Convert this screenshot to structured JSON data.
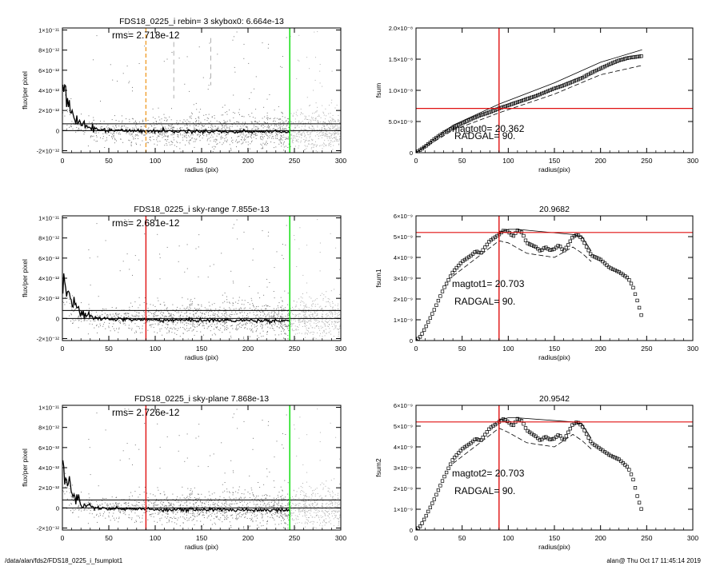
{
  "colors": {
    "background": "#ffffff",
    "axis": "#000000",
    "scatter": "#a8a8a8",
    "profile": "#000000",
    "green": "#00dd00",
    "red": "#e01010",
    "orange": "#f0a030",
    "grid_dash": "#999999"
  },
  "footer": {
    "left": "/data/alan/fds2/FDS18_0225_i_fsumplot1",
    "right": "alan@  Thu Oct 17 11:45:14 2019"
  },
  "chart_data": [
    {
      "type": "scatter",
      "title": "FDS18_0225_i rebin= 3    skybox0:  6.664e-13",
      "annotation": "rms= 2.718e-12",
      "xlabel": "radius (pix)",
      "ylabel": "flux/per pixel",
      "xlim": [
        0,
        300
      ],
      "ylim": [
        -2.2e-12,
        1.02e-11
      ],
      "xticks": [
        0,
        50,
        100,
        150,
        200,
        250,
        300
      ],
      "xtick_labels": [
        "0",
        "50",
        "100",
        "150",
        "200",
        "250",
        "300"
      ],
      "yticks": [
        -2e-12,
        0,
        2e-12,
        4e-12,
        6e-12,
        8e-12,
        1e-11
      ],
      "ytick_labels": [
        "-2×10⁻¹²",
        "0",
        "2×10⁻¹²",
        "4×10⁻¹²",
        "6×10⁻¹²",
        "8×10⁻¹²",
        "1×10⁻¹¹"
      ],
      "hlines": [
        6.7e-13,
        0
      ],
      "vlines": [
        {
          "x": 245,
          "color": "green",
          "style": "solid"
        },
        {
          "x": 90,
          "color": "orange",
          "style": "dashed"
        },
        {
          "x": 120,
          "color": "gray",
          "style": "dashed",
          "span": [
            3.2e-12,
            8.8e-12
          ]
        },
        {
          "x": 160,
          "color": "gray",
          "style": "dashed",
          "span": [
            4.5e-12,
            9.2e-12
          ]
        }
      ],
      "profile": [
        [
          1,
          4.5e-12
        ],
        [
          3,
          3.4e-12
        ],
        [
          5,
          2.8e-12
        ],
        [
          7,
          2.6e-12
        ],
        [
          9,
          1.9e-12
        ],
        [
          11,
          1.8e-12
        ],
        [
          13,
          1.2e-12
        ],
        [
          16,
          1.1e-12
        ],
        [
          20,
          6e-13
        ],
        [
          25,
          4e-13
        ],
        [
          30,
          2e-13
        ],
        [
          40,
          1e-13
        ],
        [
          50,
          5e-14
        ],
        [
          70,
          -2e-14
        ],
        [
          100,
          -5e-14
        ],
        [
          150,
          -8e-14
        ],
        [
          200,
          -1e-13
        ],
        [
          245,
          -1.2e-13
        ]
      ]
    },
    {
      "type": "line",
      "title": "",
      "annotations": [
        "magtot0=  20.362",
        "RADGAL=     90."
      ],
      "xlabel": "radius(pix)",
      "ylabel": "fsum",
      "xlim": [
        0,
        300
      ],
      "ylim": [
        0,
        2e-08
      ],
      "xticks": [
        0,
        50,
        100,
        150,
        200,
        250,
        300
      ],
      "xtick_labels": [
        "0",
        "50",
        "100",
        "150",
        "200",
        "250",
        "300"
      ],
      "yticks": [
        0,
        5e-09,
        1e-08,
        1.5e-08,
        2e-08
      ],
      "ytick_labels": [
        "0",
        "5.0×10⁻⁹",
        "1.0×10⁻⁸",
        "1.5×10⁻⁸",
        "2.0×10⁻⁸"
      ],
      "hlines": [
        7.1e-09
      ],
      "vlines": [
        {
          "x": 90,
          "color": "red",
          "style": "solid"
        }
      ],
      "curve": [
        [
          0,
          0
        ],
        [
          10,
          1e-09
        ],
        [
          20,
          2.2e-09
        ],
        [
          30,
          3.2e-09
        ],
        [
          40,
          4e-09
        ],
        [
          50,
          4.7e-09
        ],
        [
          60,
          5.4e-09
        ],
        [
          70,
          6e-09
        ],
        [
          80,
          6.5e-09
        ],
        [
          90,
          7.1e-09
        ],
        [
          100,
          7.6e-09
        ],
        [
          110,
          8.1e-09
        ],
        [
          120,
          8.6e-09
        ],
        [
          130,
          9.1e-09
        ],
        [
          140,
          9.7e-09
        ],
        [
          150,
          1.03e-08
        ],
        [
          160,
          1.08e-08
        ],
        [
          170,
          1.14e-08
        ],
        [
          180,
          1.2e-08
        ],
        [
          190,
          1.28e-08
        ],
        [
          200,
          1.35e-08
        ],
        [
          210,
          1.42e-08
        ],
        [
          220,
          1.48e-08
        ],
        [
          230,
          1.52e-08
        ],
        [
          240,
          1.54e-08
        ],
        [
          245,
          1.55e-08
        ]
      ],
      "upper": [
        [
          0,
          0
        ],
        [
          40,
          4.4e-09
        ],
        [
          90,
          7.8e-09
        ],
        [
          150,
          1.12e-08
        ],
        [
          200,
          1.45e-08
        ],
        [
          245,
          1.65e-08
        ]
      ],
      "lower": [
        [
          0,
          0
        ],
        [
          40,
          3.6e-09
        ],
        [
          90,
          6.4e-09
        ],
        [
          150,
          9.4e-09
        ],
        [
          200,
          1.25e-08
        ],
        [
          245,
          1.4e-08
        ]
      ]
    },
    {
      "type": "scatter",
      "title": "FDS18_0225_i sky-range  7.855e-13",
      "annotation": "rms= 2.681e-12",
      "xlabel": "radius (pix)",
      "ylabel": "flux/per pixel",
      "xlim": [
        0,
        300
      ],
      "ylim": [
        -2.2e-12,
        1.02e-11
      ],
      "xticks": [
        0,
        50,
        100,
        150,
        200,
        250,
        300
      ],
      "xtick_labels": [
        "0",
        "50",
        "100",
        "150",
        "200",
        "250",
        "300"
      ],
      "yticks": [
        -2e-12,
        0,
        2e-12,
        4e-12,
        6e-12,
        8e-12,
        1e-11
      ],
      "ytick_labels": [
        "-2×10⁻¹²",
        "0",
        "2×10⁻¹²",
        "4×10⁻¹²",
        "6×10⁻¹²",
        "8×10⁻¹²",
        "1×10⁻¹¹"
      ],
      "hlines": [
        7.9e-13,
        0
      ],
      "vlines": [
        {
          "x": 245,
          "color": "green",
          "style": "solid"
        },
        {
          "x": 90,
          "color": "red",
          "style": "solid"
        }
      ],
      "profile": [
        [
          1,
          4.2e-12
        ],
        [
          3,
          3.3e-12
        ],
        [
          5,
          2.7e-12
        ],
        [
          7,
          2.5e-12
        ],
        [
          9,
          1.8e-12
        ],
        [
          11,
          1.7e-12
        ],
        [
          13,
          1.1e-12
        ],
        [
          16,
          1e-12
        ],
        [
          20,
          5e-13
        ],
        [
          25,
          3e-13
        ],
        [
          30,
          1e-13
        ],
        [
          40,
          0
        ],
        [
          50,
          -5e-14
        ],
        [
          70,
          -1e-13
        ],
        [
          100,
          -1.5e-13
        ],
        [
          150,
          -1.8e-13
        ],
        [
          200,
          -2e-13
        ],
        [
          245,
          -2.2e-13
        ]
      ]
    },
    {
      "type": "line",
      "title": "20.9682",
      "annotations": [
        "magtot1=  20.703",
        "RADGAL=     90."
      ],
      "xlabel": "radius(pix)",
      "ylabel": "fsum1",
      "xlim": [
        0,
        300
      ],
      "ylim": [
        0,
        6e-09
      ],
      "xticks": [
        0,
        50,
        100,
        150,
        200,
        250,
        300
      ],
      "xtick_labels": [
        "0",
        "50",
        "100",
        "150",
        "200",
        "250",
        "300"
      ],
      "yticks": [
        0,
        1e-09,
        2e-09,
        3e-09,
        4e-09,
        5e-09,
        6e-09
      ],
      "ytick_labels": [
        "0",
        "1×10⁻⁹",
        "2×10⁻⁹",
        "3×10⁻⁹",
        "4×10⁻⁹",
        "5×10⁻⁹",
        "6×10⁻⁹"
      ],
      "hlines": [
        5.2e-09
      ],
      "vlines": [
        {
          "x": 90,
          "color": "red",
          "style": "solid"
        }
      ],
      "curve": [
        [
          0,
          0
        ],
        [
          5,
          2e-10
        ],
        [
          10,
          6e-10
        ],
        [
          20,
          1.5e-09
        ],
        [
          30,
          2.5e-09
        ],
        [
          40,
          3.3e-09
        ],
        [
          50,
          3.8e-09
        ],
        [
          60,
          4.1e-09
        ],
        [
          65,
          4.3e-09
        ],
        [
          70,
          4.2e-09
        ],
        [
          75,
          4.5e-09
        ],
        [
          80,
          4.8e-09
        ],
        [
          90,
          5.1e-09
        ],
        [
          95,
          5.3e-09
        ],
        [
          100,
          5.25e-09
        ],
        [
          105,
          5e-09
        ],
        [
          110,
          5.3e-09
        ],
        [
          115,
          5.2e-09
        ],
        [
          120,
          4.7e-09
        ],
        [
          130,
          4.5e-09
        ],
        [
          135,
          4.3e-09
        ],
        [
          140,
          4.5e-09
        ],
        [
          145,
          4.35e-09
        ],
        [
          150,
          4.4e-09
        ],
        [
          155,
          4.6e-09
        ],
        [
          160,
          4.3e-09
        ],
        [
          165,
          4.6e-09
        ],
        [
          170,
          5e-09
        ],
        [
          175,
          5.1e-09
        ],
        [
          180,
          4.9e-09
        ],
        [
          185,
          4.5e-09
        ],
        [
          190,
          4.1e-09
        ],
        [
          200,
          3.9e-09
        ],
        [
          210,
          3.5e-09
        ],
        [
          220,
          3.3e-09
        ],
        [
          230,
          3e-09
        ],
        [
          235,
          2.6e-09
        ],
        [
          240,
          1.9e-09
        ],
        [
          245,
          1.1e-09
        ]
      ],
      "upper": [
        [
          90,
          5.2e-09
        ],
        [
          100,
          5.35e-09
        ],
        [
          110,
          5.35e-09
        ],
        [
          170,
          5.1e-09
        ],
        [
          180,
          5e-09
        ],
        [
          190,
          4.3e-09
        ]
      ],
      "lower": [
        [
          40,
          3.1e-09
        ],
        [
          90,
          4.8e-09
        ],
        [
          100,
          4.7e-09
        ],
        [
          120,
          4.2e-09
        ],
        [
          150,
          4e-09
        ],
        [
          170,
          4.5e-09
        ],
        [
          180,
          4.2e-09
        ],
        [
          190,
          3.8e-09
        ]
      ]
    },
    {
      "type": "scatter",
      "title": "FDS18_0225_i sky-plane  7.868e-13",
      "annotation": "rms= 2.726e-12",
      "xlabel": "radius (pix)",
      "ylabel": "flux/per pixel",
      "xlim": [
        0,
        300
      ],
      "ylim": [
        -2.2e-12,
        1.02e-11
      ],
      "xticks": [
        0,
        50,
        100,
        150,
        200,
        250,
        300
      ],
      "xtick_labels": [
        "0",
        "50",
        "100",
        "150",
        "200",
        "250",
        "300"
      ],
      "yticks": [
        -2e-12,
        0,
        2e-12,
        4e-12,
        6e-12,
        8e-12,
        1e-11
      ],
      "ytick_labels": [
        "-2×10⁻¹²",
        "0",
        "2×10⁻¹²",
        "4×10⁻¹²",
        "6×10⁻¹²",
        "8×10⁻¹²",
        "1×10⁻¹¹"
      ],
      "hlines": [
        7.9e-13,
        0
      ],
      "vlines": [
        {
          "x": 245,
          "color": "green",
          "style": "solid"
        },
        {
          "x": 90,
          "color": "red",
          "style": "solid"
        }
      ],
      "profile": [
        [
          1,
          4.3e-12
        ],
        [
          3,
          3.3e-12
        ],
        [
          5,
          2.7e-12
        ],
        [
          7,
          2.5e-12
        ],
        [
          9,
          1.8e-12
        ],
        [
          11,
          1.7e-12
        ],
        [
          13,
          1.1e-12
        ],
        [
          16,
          1e-12
        ],
        [
          20,
          5e-13
        ],
        [
          25,
          3e-13
        ],
        [
          30,
          1e-13
        ],
        [
          40,
          0
        ],
        [
          50,
          -5e-14
        ],
        [
          70,
          -1e-13
        ],
        [
          100,
          -1.5e-13
        ],
        [
          150,
          -1.8e-13
        ],
        [
          200,
          -2e-13
        ],
        [
          245,
          -2.2e-13
        ]
      ]
    },
    {
      "type": "line",
      "title": "20.9542",
      "annotations": [
        "magtot2=  20.703",
        "RADGAL=     90."
      ],
      "xlabel": "radius(pix)",
      "ylabel": "fsum2",
      "xlim": [
        0,
        300
      ],
      "ylim": [
        0,
        6e-09
      ],
      "xticks": [
        0,
        50,
        100,
        150,
        200,
        250,
        300
      ],
      "xtick_labels": [
        "0",
        "50",
        "100",
        "150",
        "200",
        "250",
        "300"
      ],
      "yticks": [
        0,
        1e-09,
        2e-09,
        3e-09,
        4e-09,
        5e-09,
        6e-09
      ],
      "ytick_labels": [
        "0",
        "1×10⁻⁹",
        "2×10⁻⁹",
        "3×10⁻⁹",
        "4×10⁻⁹",
        "5×10⁻⁹",
        "6×10⁻⁹"
      ],
      "hlines": [
        5.2e-09
      ],
      "vlines": [
        {
          "x": 90,
          "color": "red",
          "style": "solid"
        }
      ],
      "curve": [
        [
          0,
          0
        ],
        [
          5,
          2e-10
        ],
        [
          10,
          6e-10
        ],
        [
          20,
          1.5e-09
        ],
        [
          30,
          2.5e-09
        ],
        [
          40,
          3.4e-09
        ],
        [
          50,
          3.9e-09
        ],
        [
          60,
          4.2e-09
        ],
        [
          65,
          4.4e-09
        ],
        [
          70,
          4.3e-09
        ],
        [
          75,
          4.6e-09
        ],
        [
          80,
          4.9e-09
        ],
        [
          90,
          5.2e-09
        ],
        [
          95,
          5.35e-09
        ],
        [
          100,
          5.2e-09
        ],
        [
          105,
          5e-09
        ],
        [
          110,
          5.35e-09
        ],
        [
          115,
          5.25e-09
        ],
        [
          120,
          4.8e-09
        ],
        [
          130,
          4.5e-09
        ],
        [
          135,
          4.3e-09
        ],
        [
          140,
          4.5e-09
        ],
        [
          145,
          4.35e-09
        ],
        [
          150,
          4.4e-09
        ],
        [
          155,
          4.6e-09
        ],
        [
          160,
          4.3e-09
        ],
        [
          165,
          4.7e-09
        ],
        [
          170,
          5.1e-09
        ],
        [
          175,
          5.2e-09
        ],
        [
          180,
          5e-09
        ],
        [
          185,
          4.6e-09
        ],
        [
          190,
          4.2e-09
        ],
        [
          200,
          3.9e-09
        ],
        [
          210,
          3.6e-09
        ],
        [
          220,
          3.4e-09
        ],
        [
          230,
          3e-09
        ],
        [
          235,
          2.5e-09
        ],
        [
          240,
          1.6e-09
        ],
        [
          245,
          9e-10
        ]
      ],
      "upper": [
        [
          90,
          5.3e-09
        ],
        [
          100,
          5.4e-09
        ],
        [
          110,
          5.4e-09
        ],
        [
          170,
          5.2e-09
        ],
        [
          180,
          5.1e-09
        ],
        [
          190,
          4.4e-09
        ]
      ],
      "lower": [
        [
          40,
          3.2e-09
        ],
        [
          90,
          4.9e-09
        ],
        [
          100,
          4.7e-09
        ],
        [
          120,
          4.2e-09
        ],
        [
          150,
          4e-09
        ],
        [
          170,
          4.6e-09
        ],
        [
          180,
          4.3e-09
        ],
        [
          190,
          3.9e-09
        ]
      ]
    }
  ]
}
